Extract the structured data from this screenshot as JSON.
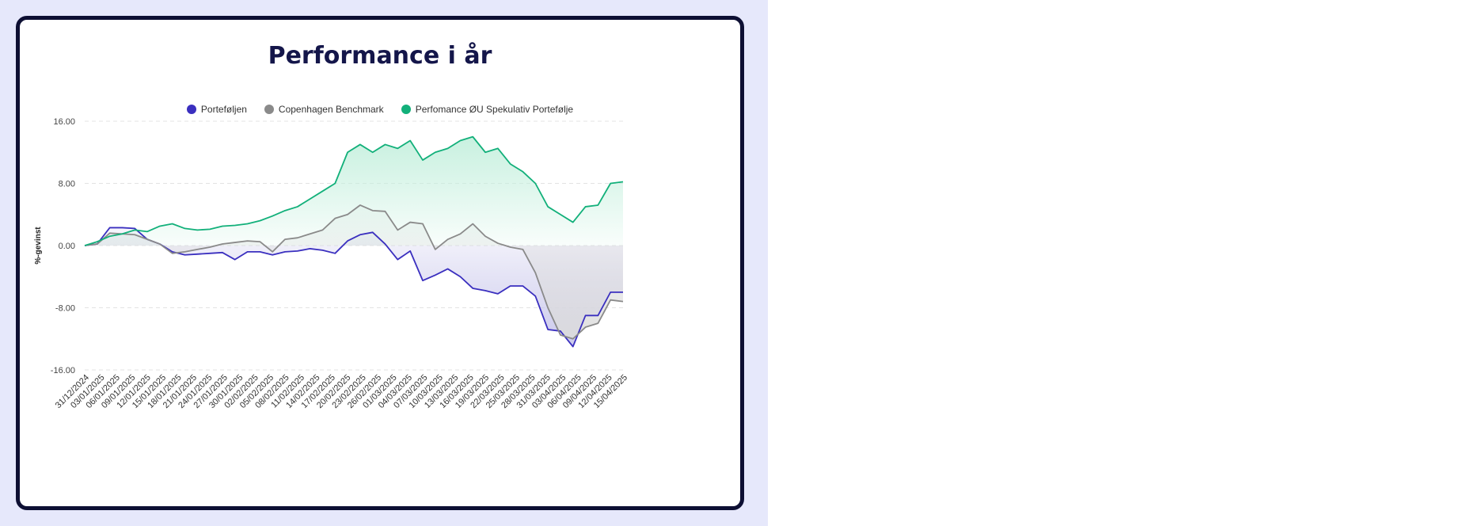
{
  "chart_data": {
    "type": "area",
    "title": "Performance i år",
    "ylabel": "%-gevinst",
    "ylim": [
      -16,
      16
    ],
    "yticks": [
      "16.00",
      "8.00",
      "0.00",
      "-8.00",
      "-16.00"
    ],
    "x_tick_labels": [
      "31/12/2024",
      "03/01/2025",
      "06/01/2025",
      "09/01/2025",
      "12/01/2025",
      "15/01/2025",
      "18/01/2025",
      "21/01/2025",
      "24/01/2025",
      "27/01/2025",
      "30/01/2025",
      "02/02/2025",
      "05/02/2025",
      "08/02/2025",
      "11/02/2025",
      "14/02/2025",
      "17/02/2025",
      "20/02/2025",
      "23/02/2025",
      "26/02/2025",
      "01/03/2025",
      "04/03/2025",
      "07/03/2025",
      "10/03/2025",
      "13/03/2025",
      "16/03/2025",
      "19/03/2025",
      "22/03/2025",
      "25/03/2025",
      "28/03/2025",
      "31/03/2025",
      "03/04/2025",
      "06/04/2025",
      "09/04/2025",
      "12/04/2025",
      "15/04/2025"
    ],
    "grid": true,
    "legend_position": "top",
    "series": [
      {
        "name": "Porteføljen",
        "color": "#3a2fbf",
        "fill": "#c5c3ea",
        "points": [
          [
            0,
            0
          ],
          [
            1,
            0.2
          ],
          [
            2,
            2.3
          ],
          [
            3,
            2.3
          ],
          [
            4,
            2.2
          ],
          [
            5,
            0.8
          ],
          [
            6,
            0.2
          ],
          [
            7,
            -0.8
          ],
          [
            8,
            -1.2
          ],
          [
            9,
            -1.1
          ],
          [
            10,
            -1
          ],
          [
            11,
            -0.9
          ],
          [
            12,
            -1.8
          ],
          [
            13,
            -0.8
          ],
          [
            14,
            -0.8
          ],
          [
            15,
            -1.2
          ],
          [
            16,
            -0.8
          ],
          [
            17,
            -0.7
          ],
          [
            18,
            -0.4
          ],
          [
            19,
            -0.6
          ],
          [
            20,
            -1
          ],
          [
            21,
            0.6
          ],
          [
            22,
            1.4
          ],
          [
            23,
            1.7
          ],
          [
            24,
            0.2
          ],
          [
            25,
            -1.8
          ],
          [
            26,
            -0.7
          ],
          [
            27,
            -4.5
          ],
          [
            28,
            -3.8
          ],
          [
            29,
            -3
          ],
          [
            30,
            -4
          ],
          [
            31,
            -5.5
          ],
          [
            32,
            -5.8
          ],
          [
            33,
            -6.2
          ],
          [
            34,
            -5.2
          ],
          [
            35,
            -5.2
          ],
          [
            36,
            -6.5
          ],
          [
            37,
            -10.8
          ],
          [
            38,
            -11
          ],
          [
            39,
            -13
          ],
          [
            40,
            -9
          ],
          [
            41,
            -9
          ],
          [
            42,
            -6
          ],
          [
            43,
            -6
          ]
        ]
      },
      {
        "name": "Copenhagen Benchmark",
        "color": "#8a8a8a",
        "fill": "#dcdcdc",
        "points": [
          [
            0,
            0
          ],
          [
            1,
            0.2
          ],
          [
            2,
            1.6
          ],
          [
            3,
            1.5
          ],
          [
            4,
            1.4
          ],
          [
            5,
            0.8
          ],
          [
            6,
            0.2
          ],
          [
            7,
            -1
          ],
          [
            8,
            -0.8
          ],
          [
            9,
            -0.5
          ],
          [
            10,
            -0.2
          ],
          [
            11,
            0.2
          ],
          [
            12,
            0.4
          ],
          [
            13,
            0.6
          ],
          [
            14,
            0.5
          ],
          [
            15,
            -0.8
          ],
          [
            16,
            0.8
          ],
          [
            17,
            1
          ],
          [
            18,
            1.5
          ],
          [
            19,
            2
          ],
          [
            20,
            3.5
          ],
          [
            21,
            4
          ],
          [
            22,
            5.2
          ],
          [
            23,
            4.5
          ],
          [
            24,
            4.4
          ],
          [
            25,
            2
          ],
          [
            26,
            3
          ],
          [
            27,
            2.8
          ],
          [
            28,
            -0.5
          ],
          [
            29,
            0.8
          ],
          [
            30,
            1.5
          ],
          [
            31,
            2.8
          ],
          [
            32,
            1.2
          ],
          [
            33,
            0.3
          ],
          [
            34,
            -0.2
          ],
          [
            35,
            -0.5
          ],
          [
            36,
            -3.5
          ],
          [
            37,
            -8
          ],
          [
            38,
            -11.5
          ],
          [
            39,
            -12
          ],
          [
            40,
            -10.5
          ],
          [
            41,
            -10
          ],
          [
            42,
            -7
          ],
          [
            43,
            -7.2
          ]
        ]
      },
      {
        "name": "Perfomance ØU Spekulativ Portefølje",
        "color": "#12b07a",
        "fill": "#c2efdc",
        "points": [
          [
            0,
            0
          ],
          [
            1,
            0.5
          ],
          [
            2,
            1.2
          ],
          [
            3,
            1.5
          ],
          [
            4,
            2
          ],
          [
            5,
            1.8
          ],
          [
            6,
            2.5
          ],
          [
            7,
            2.8
          ],
          [
            8,
            2.2
          ],
          [
            9,
            2
          ],
          [
            10,
            2.1
          ],
          [
            11,
            2.5
          ],
          [
            12,
            2.6
          ],
          [
            13,
            2.8
          ],
          [
            14,
            3.2
          ],
          [
            15,
            3.8
          ],
          [
            16,
            4.5
          ],
          [
            17,
            5
          ],
          [
            18,
            6
          ],
          [
            19,
            7
          ],
          [
            20,
            8
          ],
          [
            21,
            12
          ],
          [
            22,
            13
          ],
          [
            23,
            12
          ],
          [
            24,
            13
          ],
          [
            25,
            12.5
          ],
          [
            26,
            13.5
          ],
          [
            27,
            11
          ],
          [
            28,
            12
          ],
          [
            29,
            12.5
          ],
          [
            30,
            13.5
          ],
          [
            31,
            14
          ],
          [
            32,
            12
          ],
          [
            33,
            12.5
          ],
          [
            34,
            10.5
          ],
          [
            35,
            9.5
          ],
          [
            36,
            8
          ],
          [
            37,
            5
          ],
          [
            38,
            4
          ],
          [
            39,
            3
          ],
          [
            40,
            5
          ],
          [
            41,
            5.2
          ],
          [
            42,
            8
          ],
          [
            43,
            8.2
          ]
        ]
      }
    ]
  }
}
